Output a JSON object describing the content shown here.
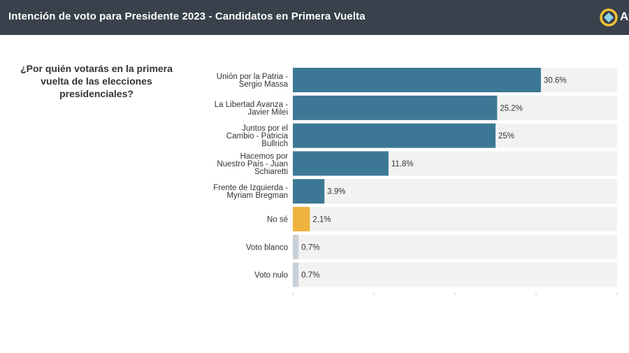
{
  "header": {
    "title": "Intención de voto para Presidente 2023 - Candidatos en Primera Vuelta",
    "brand": "At",
    "brand_icon": "diamond-logo-icon",
    "background": "#39414c"
  },
  "question": "¿Por quién votarás en la primera vuelta de las elecciones presidenciales?",
  "chart_data": {
    "type": "bar",
    "orientation": "horizontal",
    "title": "",
    "xlabel": "",
    "ylabel": "",
    "xlim": [
      0,
      40
    ],
    "grid": false,
    "categories": [
      [
        "Unión por la Patria -",
        "Sergio Massa"
      ],
      [
        "La Libertad Avanza -",
        "Javier Milei"
      ],
      [
        "Juntos por el",
        "Cambio - Patricia",
        "Bullrich"
      ],
      [
        "Hacemos por",
        "Nuestro País - Juan",
        "Schiaretti"
      ],
      [
        "Frente de Izquierda -",
        "Myriam Bregman"
      ],
      [
        "No sé"
      ],
      [
        "Voto blanco"
      ],
      [
        "Voto nulo"
      ]
    ],
    "values": [
      30.6,
      25.2,
      25,
      11.8,
      3.9,
      2.1,
      0.7,
      0.7
    ],
    "value_labels": [
      "30.6%",
      "25.2%",
      "25%",
      "11.8%",
      "3.9%",
      "2.1%",
      "0.7%",
      "0.7%"
    ],
    "colors": [
      "#3c7895",
      "#3c7895",
      "#3c7895",
      "#3c7895",
      "#3c7895",
      "#efb23f",
      "#c9d0d6",
      "#c9d0d6"
    ],
    "track_color": "#f2f2f2"
  }
}
